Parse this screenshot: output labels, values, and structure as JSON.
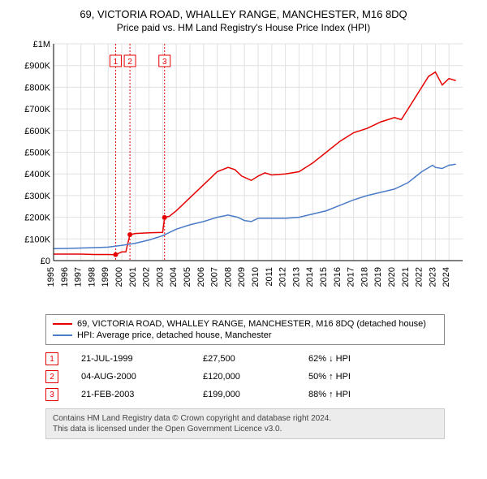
{
  "title": "69, VICTORIA ROAD, WHALLEY RANGE, MANCHESTER, M16 8DQ",
  "subtitle": "Price paid vs. HM Land Registry's House Price Index (HPI)",
  "chart": {
    "type": "line",
    "x_axis": {
      "min": 1995,
      "max": 2025,
      "ticks": [
        1995,
        1996,
        1997,
        1998,
        1999,
        2000,
        2001,
        2002,
        2003,
        2004,
        2005,
        2006,
        2007,
        2008,
        2009,
        2010,
        2011,
        2012,
        2013,
        2014,
        2015,
        2016,
        2017,
        2018,
        2019,
        2020,
        2021,
        2022,
        2023,
        2024
      ],
      "label_fontsize": 11,
      "label_rotation": -90
    },
    "y_axis": {
      "min": 0,
      "max": 1000000,
      "ticks": [
        0,
        100000,
        200000,
        300000,
        400000,
        500000,
        600000,
        700000,
        800000,
        900000,
        1000000
      ],
      "tick_labels": [
        "£0",
        "£100K",
        "£200K",
        "£300K",
        "£400K",
        "£500K",
        "£600K",
        "£700K",
        "£800K",
        "£900K",
        "£1M"
      ],
      "label_fontsize": 11
    },
    "grid_color": "#e0e0e0",
    "axis_color": "#000000",
    "background_color": "#ffffff",
    "series": [
      {
        "name": "property",
        "label": "69, VICTORIA ROAD, WHALLEY RANGE, MANCHESTER, M16 8DQ (detached house)",
        "color": "#e60000",
        "line_width": 1.5,
        "data": [
          [
            1995.0,
            30000
          ],
          [
            1996.0,
            30000
          ],
          [
            1997.0,
            30000
          ],
          [
            1998.0,
            28000
          ],
          [
            1999.0,
            28000
          ],
          [
            1999.55,
            27500
          ],
          [
            2000.0,
            40000
          ],
          [
            2000.3,
            40000
          ],
          [
            2000.6,
            120000
          ],
          [
            2001.0,
            125000
          ],
          [
            2002.0,
            128000
          ],
          [
            2003.0,
            130000
          ],
          [
            2003.14,
            199000
          ],
          [
            2003.5,
            205000
          ],
          [
            2004.0,
            230000
          ],
          [
            2005.0,
            290000
          ],
          [
            2006.0,
            350000
          ],
          [
            2007.0,
            410000
          ],
          [
            2007.8,
            430000
          ],
          [
            2008.3,
            420000
          ],
          [
            2008.8,
            390000
          ],
          [
            2009.5,
            370000
          ],
          [
            2010.0,
            390000
          ],
          [
            2010.5,
            405000
          ],
          [
            2011.0,
            395000
          ],
          [
            2012.0,
            400000
          ],
          [
            2013.0,
            410000
          ],
          [
            2014.0,
            450000
          ],
          [
            2015.0,
            500000
          ],
          [
            2016.0,
            550000
          ],
          [
            2017.0,
            590000
          ],
          [
            2018.0,
            610000
          ],
          [
            2019.0,
            640000
          ],
          [
            2020.0,
            660000
          ],
          [
            2020.5,
            650000
          ],
          [
            2021.0,
            700000
          ],
          [
            2021.5,
            750000
          ],
          [
            2022.0,
            800000
          ],
          [
            2022.5,
            850000
          ],
          [
            2023.0,
            870000
          ],
          [
            2023.5,
            810000
          ],
          [
            2024.0,
            840000
          ],
          [
            2024.5,
            830000
          ]
        ]
      },
      {
        "name": "hpi",
        "label": "HPI: Average price, detached house, Manchester",
        "color": "#4a7bc8",
        "line_width": 1.5,
        "data": [
          [
            1995.0,
            55000
          ],
          [
            1996.0,
            56000
          ],
          [
            1997.0,
            58000
          ],
          [
            1998.0,
            60000
          ],
          [
            1999.0,
            62000
          ],
          [
            2000.0,
            70000
          ],
          [
            2001.0,
            80000
          ],
          [
            2002.0,
            95000
          ],
          [
            2003.0,
            115000
          ],
          [
            2004.0,
            145000
          ],
          [
            2005.0,
            165000
          ],
          [
            2006.0,
            180000
          ],
          [
            2007.0,
            200000
          ],
          [
            2007.8,
            210000
          ],
          [
            2008.5,
            200000
          ],
          [
            2009.0,
            185000
          ],
          [
            2009.5,
            180000
          ],
          [
            2010.0,
            195000
          ],
          [
            2011.0,
            195000
          ],
          [
            2012.0,
            195000
          ],
          [
            2013.0,
            200000
          ],
          [
            2014.0,
            215000
          ],
          [
            2015.0,
            230000
          ],
          [
            2016.0,
            255000
          ],
          [
            2017.0,
            280000
          ],
          [
            2018.0,
            300000
          ],
          [
            2019.0,
            315000
          ],
          [
            2020.0,
            330000
          ],
          [
            2021.0,
            360000
          ],
          [
            2022.0,
            410000
          ],
          [
            2022.8,
            440000
          ],
          [
            2023.0,
            430000
          ],
          [
            2023.5,
            425000
          ],
          [
            2024.0,
            440000
          ],
          [
            2024.5,
            445000
          ]
        ]
      }
    ],
    "markers": [
      {
        "id": "1",
        "x": 1999.55,
        "color": "#e60000",
        "date": "21-JUL-1999",
        "price": "£27,500",
        "hpi": "62% ↓ HPI"
      },
      {
        "id": "2",
        "x": 2000.6,
        "color": "#e60000",
        "date": "04-AUG-2000",
        "price": "£120,000",
        "hpi": "50% ↑ HPI"
      },
      {
        "id": "3",
        "x": 2003.14,
        "color": "#e60000",
        "date": "21-FEB-2003",
        "price": "£199,000",
        "hpi": "88% ↑ HPI"
      }
    ]
  },
  "legend": {
    "border_color": "#888888"
  },
  "attribution": {
    "line1": "Contains HM Land Registry data © Crown copyright and database right 2024.",
    "line2": "This data is licensed under the Open Government Licence v3.0.",
    "background": "#ececec",
    "border_color": "#cccccc"
  }
}
